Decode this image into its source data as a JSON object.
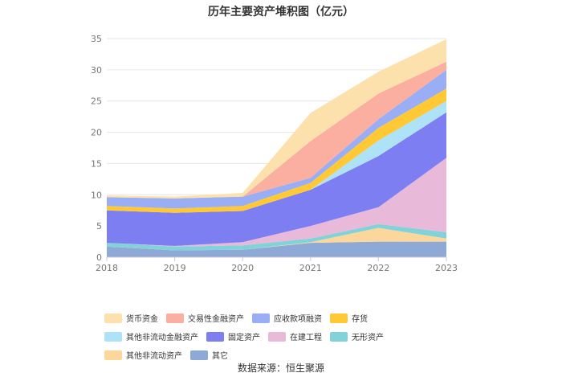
{
  "chart_data": {
    "type": "area",
    "stacked": true,
    "title": "历年主要资产堆积图（亿元）",
    "xlabel": "",
    "ylabel": "",
    "categories": [
      "2018",
      "2019",
      "2020",
      "2021",
      "2022",
      "2023"
    ],
    "ylim": [
      0,
      35
    ],
    "yticks": [
      0,
      5,
      10,
      15,
      20,
      25,
      30,
      35
    ],
    "grid": true,
    "legend_position": "bottom",
    "series": [
      {
        "name": "其它",
        "color": "#8fa9d6",
        "values": [
          1.7,
          1.1,
          1.2,
          2.3,
          2.5,
          2.5
        ]
      },
      {
        "name": "其他非流动资产",
        "color": "#fcd79b",
        "values": [
          0.0,
          0.0,
          0.0,
          0.1,
          2.2,
          0.5
        ]
      },
      {
        "name": "无形资产",
        "color": "#81d3d9",
        "values": [
          0.6,
          0.6,
          0.7,
          0.6,
          0.6,
          1.0
        ]
      },
      {
        "name": "在建工程",
        "color": "#e9b9d9",
        "values": [
          0.0,
          0.1,
          0.5,
          2.0,
          2.7,
          11.9
        ]
      },
      {
        "name": "固定资产",
        "color": "#7d7ef2",
        "values": [
          5.2,
          5.3,
          5.0,
          5.8,
          8.2,
          7.3
        ]
      },
      {
        "name": "其他非流动金融资产",
        "color": "#aee2f7",
        "values": [
          0.0,
          0.0,
          0.0,
          0.0,
          2.5,
          1.8
        ]
      },
      {
        "name": "存货",
        "color": "#ffc935",
        "values": [
          0.7,
          0.7,
          0.8,
          1.1,
          2.0,
          2.0
        ]
      },
      {
        "name": "应收款项融资",
        "color": "#99aef5",
        "values": [
          1.4,
          1.6,
          1.5,
          0.8,
          1.4,
          3.0
        ]
      },
      {
        "name": "交易性金融资产",
        "color": "#fbafa1",
        "values": [
          0.0,
          0.0,
          0.0,
          5.9,
          4.1,
          1.3
        ]
      },
      {
        "name": "货币资金",
        "color": "#fde1ad",
        "values": [
          0.3,
          0.3,
          0.6,
          4.5,
          3.5,
          3.6
        ]
      }
    ],
    "legend_order": [
      "货币资金",
      "交易性金融资产",
      "应收款项融资",
      "存货",
      "其他非流动金融资产",
      "固定资产",
      "在建工程",
      "无形资产",
      "其他非流动资产",
      "其它"
    ]
  },
  "footer": {
    "source": "数据来源：恒生聚源"
  }
}
